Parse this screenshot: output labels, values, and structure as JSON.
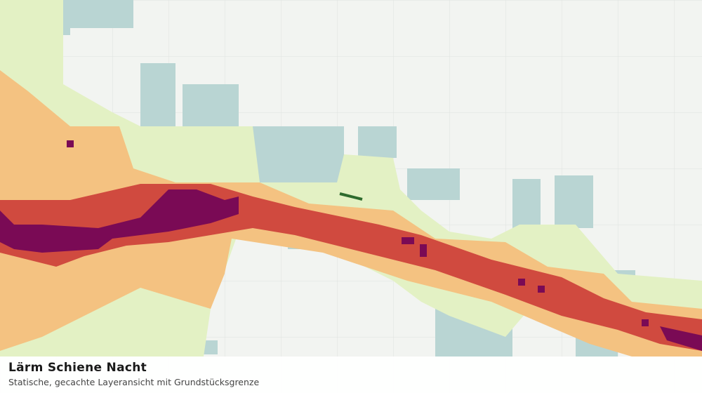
{
  "header": {
    "title": "Lärm Schiene Nacht",
    "subtitle": "Statische, gecachte Layeransicht mit Grundstücksgrenze"
  }
}
